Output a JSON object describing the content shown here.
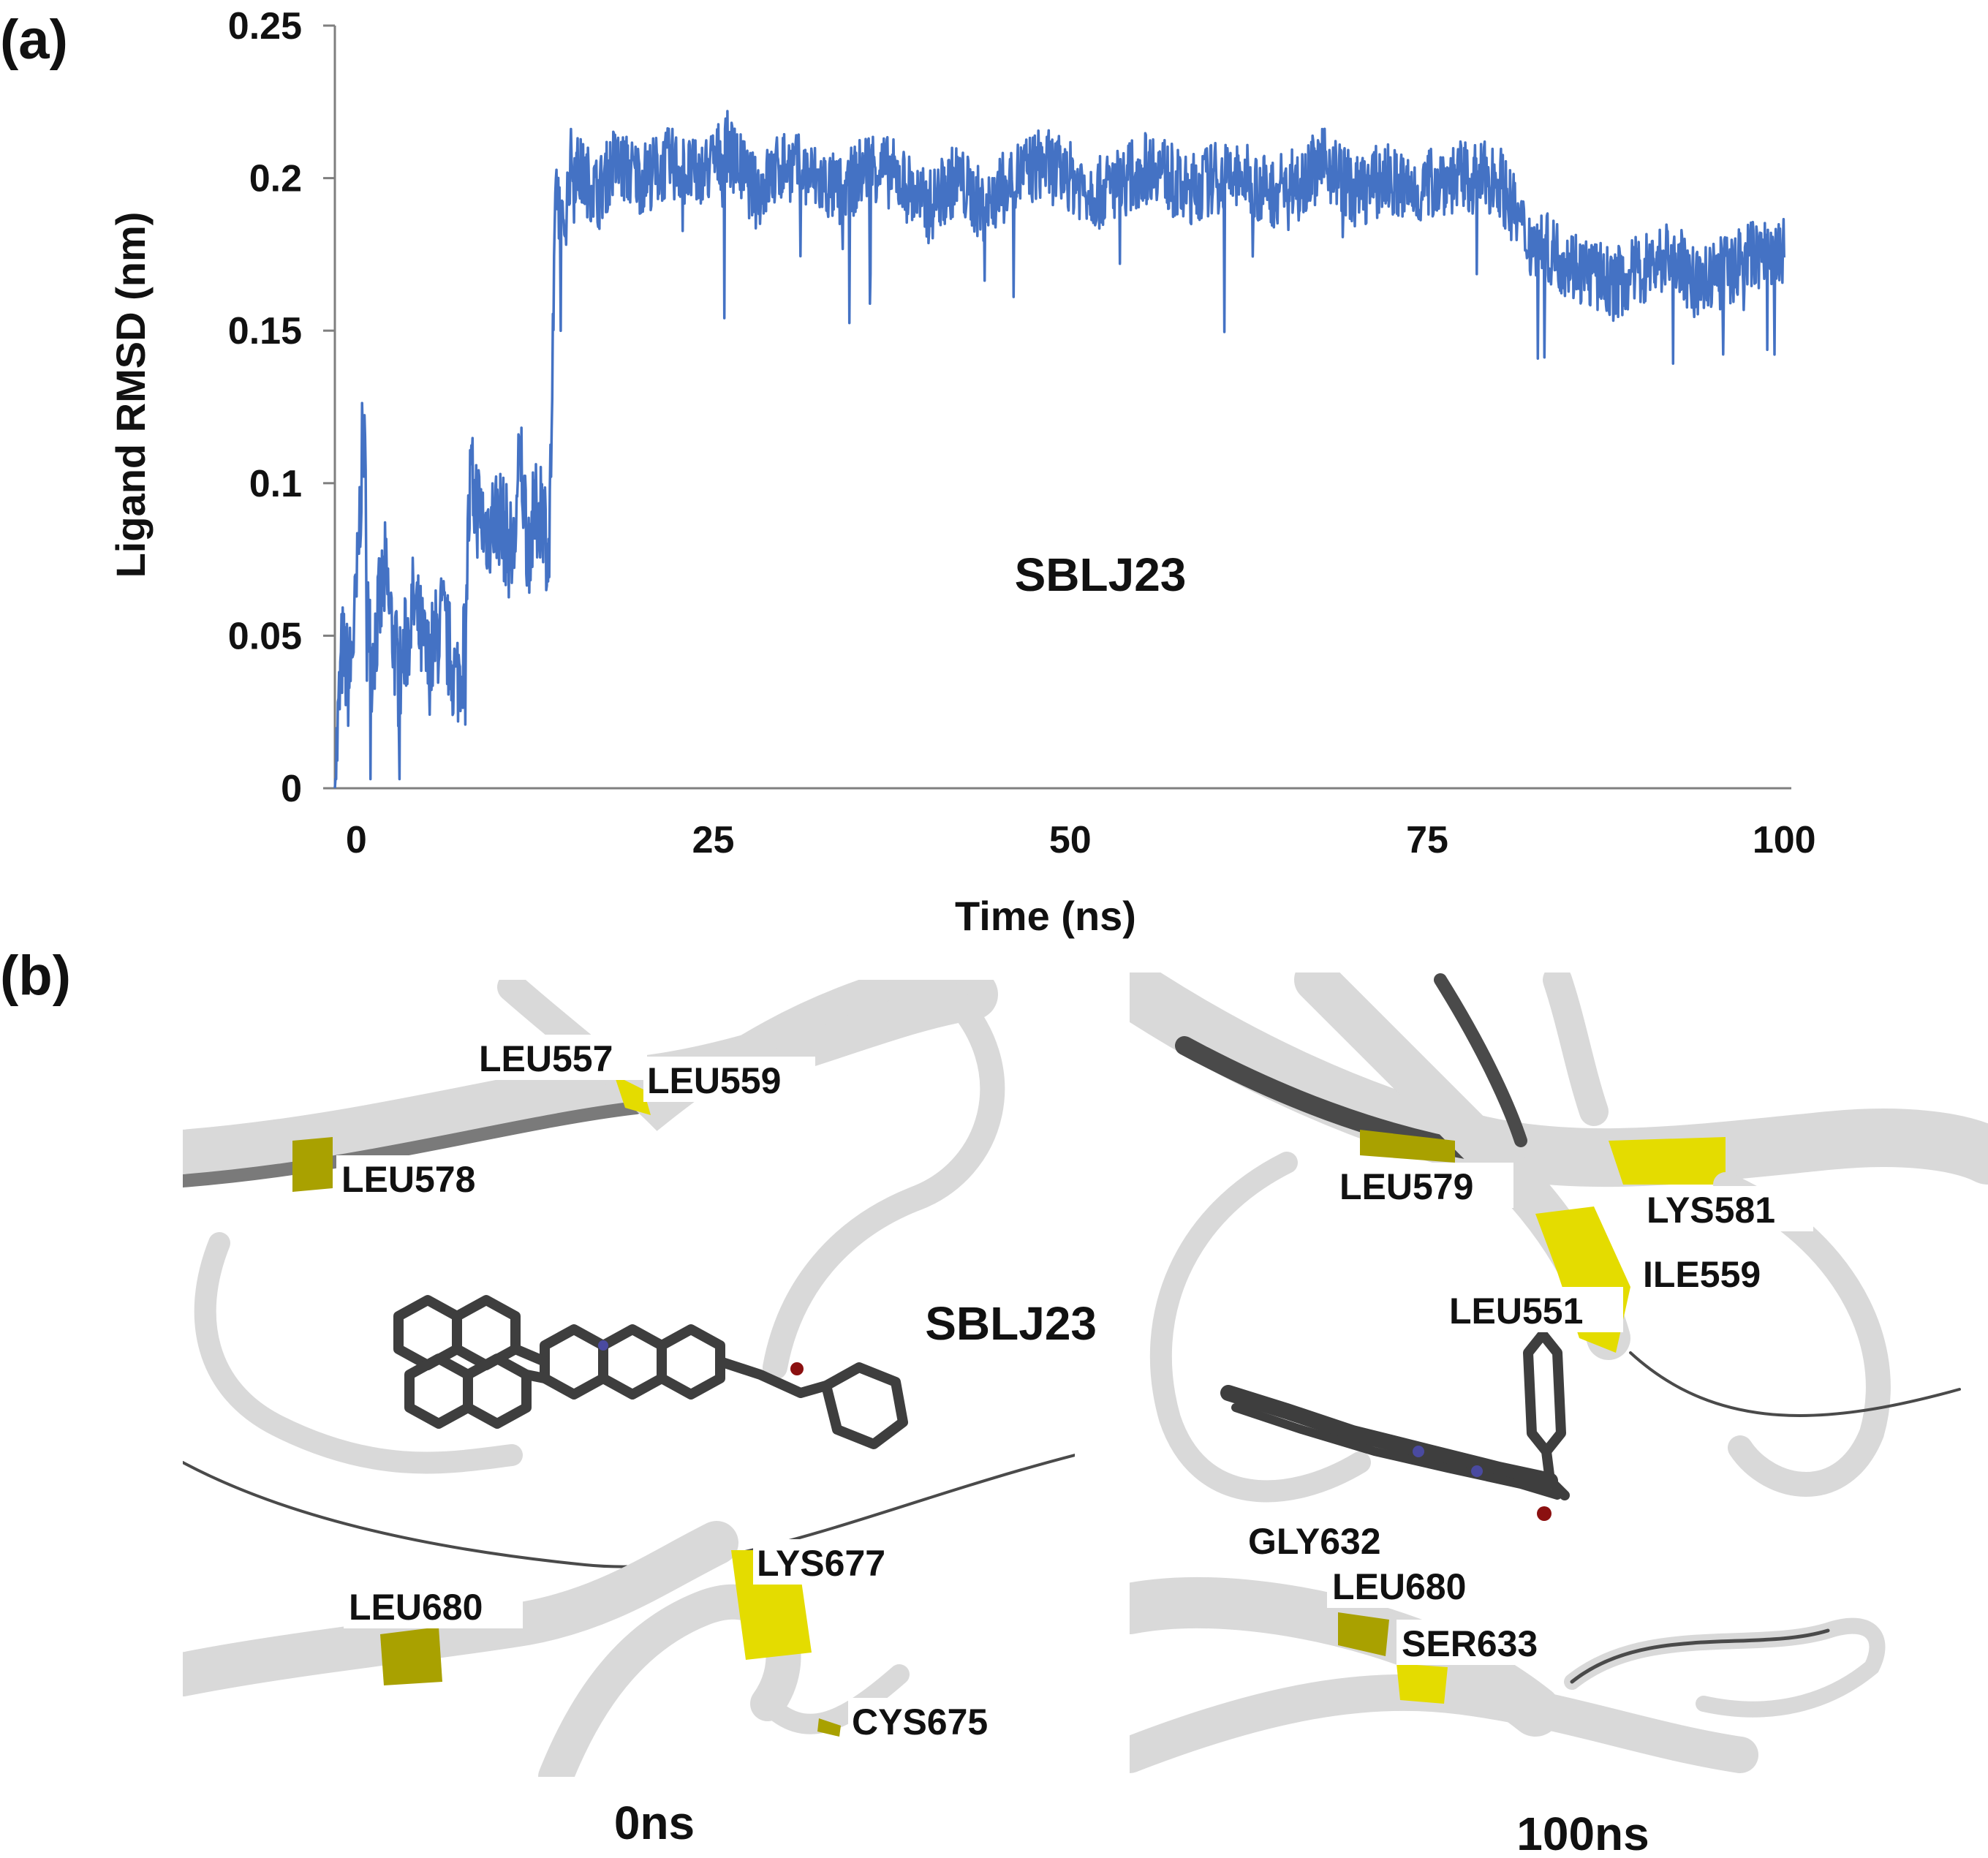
{
  "panel_a_label": "(a)",
  "panel_b_label": "(b)",
  "chart_data": {
    "type": "line",
    "title": "",
    "annotation": "SBLJ23",
    "xlabel": "Time (ns)",
    "ylabel": "Ligand RMSD (nm)",
    "xlim": [
      -1.5,
      100.5
    ],
    "ylim": [
      0,
      0.25
    ],
    "xticks": [
      0,
      25,
      50,
      75,
      100
    ],
    "yticks": [
      0,
      0.05,
      0.1,
      0.15,
      0.2,
      0.25
    ],
    "ytick_labels": [
      "0",
      "0.05",
      "0.1",
      "0.15",
      "0.2",
      "0.25"
    ],
    "grid": false,
    "legend": "none",
    "series": [
      {
        "color": "#4472c4",
        "x": [
          -1.5,
          -1,
          -0.5,
          0,
          0.5,
          1,
          2,
          3,
          4,
          5,
          6,
          7,
          7.5,
          8,
          9,
          10,
          11,
          11.5,
          12,
          13,
          13.5,
          14,
          14.5,
          15,
          16,
          17,
          18,
          20,
          22,
          24,
          26,
          28,
          30,
          32,
          34,
          36,
          38,
          40,
          42,
          44,
          46,
          48,
          50,
          52,
          54,
          56,
          58,
          60,
          62,
          64,
          66,
          68,
          70,
          72,
          74,
          76,
          78,
          80,
          82,
          84,
          86,
          88,
          90,
          92,
          94,
          96,
          98,
          100
        ],
        "y": [
          0.0,
          0.045,
          0.035,
          0.06,
          0.12,
          0.04,
          0.07,
          0.035,
          0.06,
          0.04,
          0.055,
          0.035,
          0.045,
          0.1,
          0.085,
          0.09,
          0.075,
          0.11,
          0.08,
          0.095,
          0.075,
          0.2,
          0.18,
          0.205,
          0.2,
          0.195,
          0.205,
          0.2,
          0.205,
          0.2,
          0.21,
          0.195,
          0.205,
          0.2,
          0.195,
          0.205,
          0.2,
          0.19,
          0.2,
          0.19,
          0.2,
          0.205,
          0.2,
          0.195,
          0.2,
          0.205,
          0.195,
          0.2,
          0.2,
          0.195,
          0.2,
          0.205,
          0.195,
          0.2,
          0.195,
          0.2,
          0.2,
          0.2,
          0.18,
          0.175,
          0.17,
          0.165,
          0.17,
          0.175,
          0.165,
          0.17,
          0.175,
          0.175
        ]
      }
    ]
  },
  "panel_b": {
    "left": {
      "caption": "0ns",
      "ligand_label": "SBLJ23",
      "residues": [
        "LEU557",
        "LEU559",
        "LEU578",
        "LYS677",
        "LEU680",
        "CYS675"
      ]
    },
    "right": {
      "caption": "100ns",
      "residues": [
        "LEU579",
        "LYS581",
        "ILE559",
        "LEU551",
        "GLY632",
        "LEU680",
        "SER633"
      ]
    }
  }
}
